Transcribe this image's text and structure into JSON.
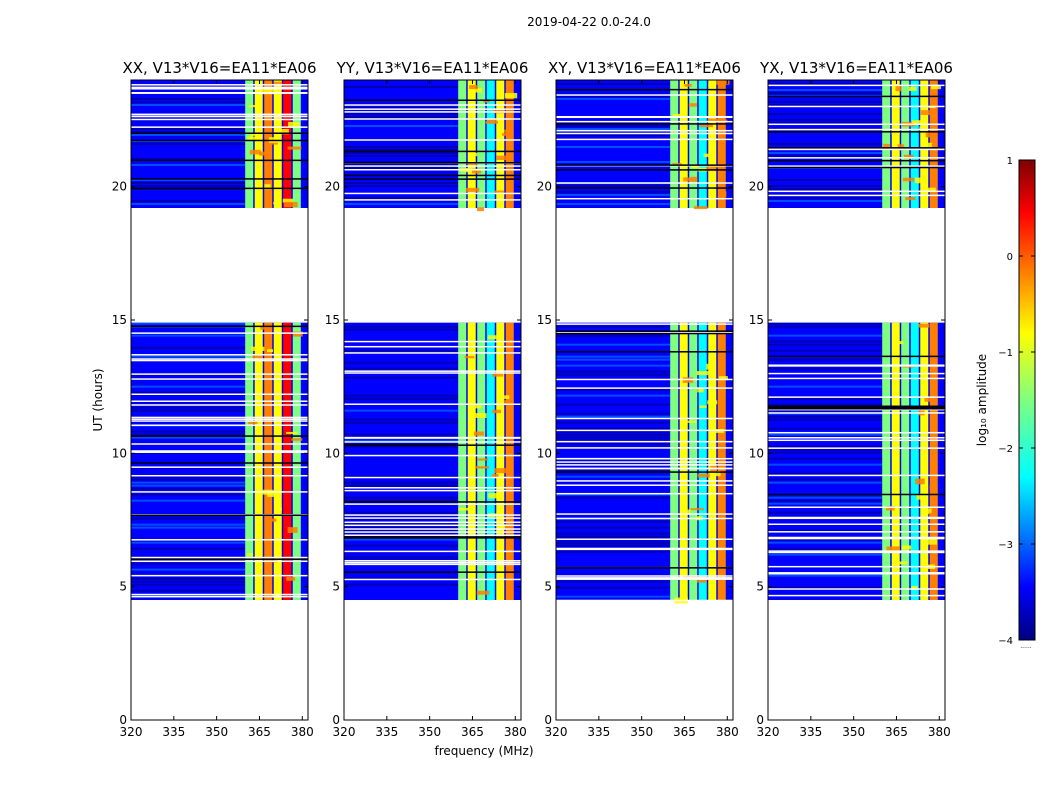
{
  "figure_title": "2019-04-22 0.0-24.0",
  "chart_data": {
    "type": "heatmap",
    "shared_xlabel": "frequency (MHz)",
    "shared_ylabel": "UT (hours)",
    "x_ticks": [
      320,
      335,
      350,
      365,
      380
    ],
    "y_ticks": [
      0,
      5,
      10,
      15,
      20
    ],
    "x_range": [
      320,
      382
    ],
    "y_range": [
      0,
      24
    ],
    "data_coverage_ut_hours": [
      [
        4.5,
        14.9
      ],
      [
        19.2,
        24.0
      ]
    ],
    "rfi_band_mhz": [
      360,
      380
    ],
    "panels": [
      {
        "title": "XX, V13*V16=EA11*EA06",
        "band_level": "high"
      },
      {
        "title": "YY, V13*V16=EA11*EA06",
        "band_level": "medium"
      },
      {
        "title": "XY, V13*V16=EA11*EA06",
        "band_level": "medium"
      },
      {
        "title": "YX, V13*V16=EA11*EA06",
        "band_level": "medium"
      }
    ],
    "colorbar": {
      "label": "log₁₀ amplitude",
      "ticks": [
        "1",
        "0",
        "−1",
        "−2",
        "−3",
        "−4"
      ],
      "range": [
        -4,
        1
      ],
      "colormap": "jet",
      "under_label": "......"
    }
  },
  "colors": {
    "jet": [
      "#00007f",
      "#0000ff",
      "#007fff",
      "#00ffff",
      "#7fff7f",
      "#ffff00",
      "#ff7f00",
      "#ff0000",
      "#7f0000"
    ],
    "flag": "#ffffff",
    "frame": "#000000"
  }
}
